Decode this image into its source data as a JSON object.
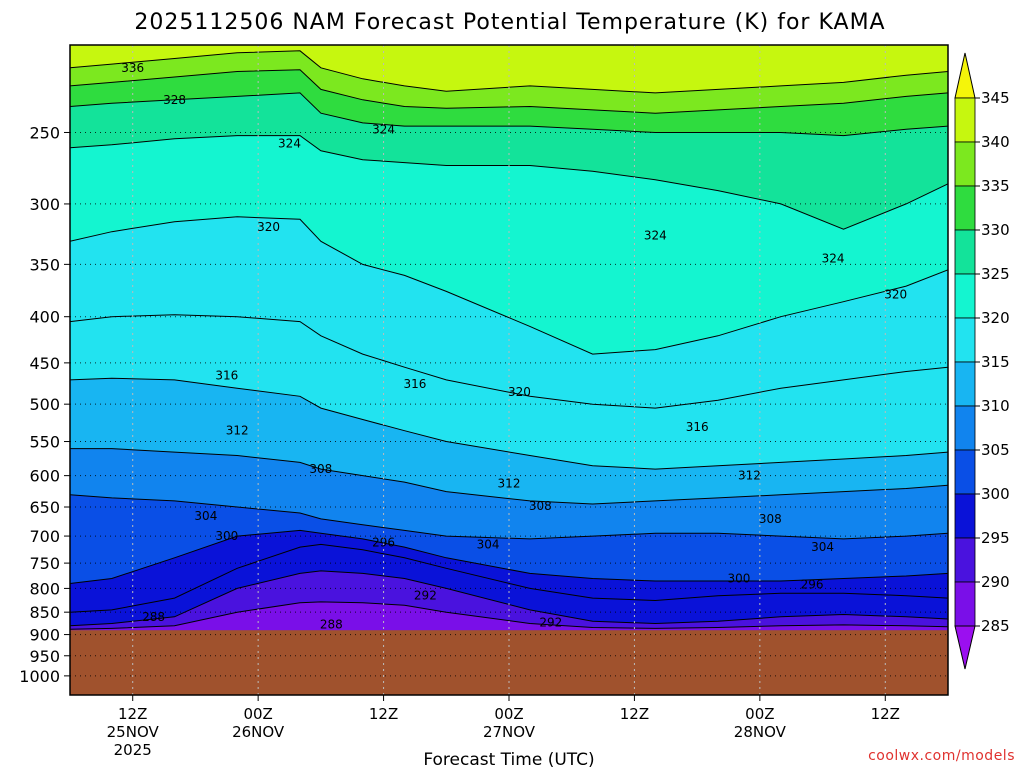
{
  "title": "2025112506 NAM Forecast Potential Temperature (K) for KAMA",
  "credit": "coolwx.com/models",
  "chart_data": {
    "type": "heatmap",
    "title": "2025112506 NAM Forecast Potential Temperature (K) for KAMA",
    "xlabel": "Forecast Time (UTC)",
    "ylabel": "",
    "y_scale": "log",
    "y_reversed": true,
    "ylim": [
      1050,
      200
    ],
    "xlim": [
      6,
      90
    ],
    "y_ticks": [
      250,
      300,
      350,
      400,
      450,
      500,
      550,
      600,
      650,
      700,
      750,
      800,
      850,
      900,
      950,
      1000
    ],
    "x_ticks": [
      {
        "hour": 12,
        "label": "12Z",
        "sub": "25NOV",
        "sub2": "2025"
      },
      {
        "hour": 24,
        "label": "00Z",
        "sub": "26NOV",
        "sub2": ""
      },
      {
        "hour": 36,
        "label": "12Z",
        "sub": "",
        "sub2": ""
      },
      {
        "hour": 48,
        "label": "00Z",
        "sub": "27NOV",
        "sub2": ""
      },
      {
        "hour": 60,
        "label": "12Z",
        "sub": "",
        "sub2": ""
      },
      {
        "hour": 72,
        "label": "00Z",
        "sub": "28NOV",
        "sub2": ""
      },
      {
        "hour": 84,
        "label": "12Z",
        "sub": "",
        "sub2": ""
      }
    ],
    "grid": true,
    "ground_pressure": 890,
    "ground_color": "#a0522d",
    "colorbar": {
      "ticks": [
        345,
        340,
        335,
        330,
        325,
        320,
        315,
        310,
        305,
        300,
        295,
        290,
        285
      ],
      "bands": [
        {
          "min": 340,
          "max": 345,
          "color": "#c6f70f"
        },
        {
          "min": 335,
          "max": 340,
          "color": "#7ce81f"
        },
        {
          "min": 330,
          "max": 335,
          "color": "#2fdc3f"
        },
        {
          "min": 325,
          "max": 330,
          "color": "#13e39a"
        },
        {
          "min": 320,
          "max": 325,
          "color": "#14f5d0"
        },
        {
          "min": 315,
          "max": 320,
          "color": "#22e3f0"
        },
        {
          "min": 310,
          "max": 315,
          "color": "#18b5f2"
        },
        {
          "min": 305,
          "max": 310,
          "color": "#1184ee"
        },
        {
          "min": 300,
          "max": 305,
          "color": "#0a4fe6"
        },
        {
          "min": 295,
          "max": 300,
          "color": "#0a12d8"
        },
        {
          "min": 290,
          "max": 295,
          "color": "#4a12de"
        },
        {
          "min": 285,
          "max": 290,
          "color": "#7a0fe8"
        }
      ],
      "top_arrow_color": "#f5f50a",
      "bottom_arrow_color": "#9b0ff0"
    },
    "series": [
      {
        "value": 336,
        "x": [
          6,
          10,
          16,
          22,
          28,
          30,
          34,
          38,
          42,
          50,
          56,
          62,
          68,
          74,
          80,
          86,
          90
        ],
        "pressure": [
          212,
          210,
          207,
          204,
          203,
          212,
          218,
          222,
          225,
          222,
          224,
          226,
          224,
          222,
          220,
          216,
          214
        ]
      },
      {
        "value": 332,
        "x": [
          6,
          10,
          16,
          22,
          28,
          30,
          34,
          38,
          42,
          50,
          56,
          62,
          68,
          74,
          80,
          86,
          90
        ],
        "pressure": [
          222,
          220,
          217,
          214,
          213,
          224,
          230,
          234,
          235,
          234,
          236,
          238,
          236,
          234,
          232,
          228,
          226
        ]
      },
      {
        "value": 328,
        "x": [
          6,
          10,
          16,
          22,
          28,
          30,
          34,
          38,
          42,
          50,
          56,
          62,
          68,
          74,
          80,
          86,
          90
        ],
        "pressure": [
          234,
          232,
          230,
          228,
          226,
          238,
          244,
          246,
          246,
          246,
          248,
          250,
          250,
          250,
          252,
          248,
          246
        ]
      },
      {
        "value": 324,
        "x": [
          6,
          10,
          16,
          22,
          28,
          30,
          34,
          38,
          42,
          50,
          56,
          62,
          68,
          74,
          80,
          86,
          90
        ],
        "pressure": [
          260,
          258,
          254,
          252,
          252,
          262,
          268,
          270,
          272,
          272,
          276,
          282,
          290,
          300,
          320,
          300,
          285
        ]
      },
      {
        "value": 320,
        "x": [
          6,
          10,
          16,
          22,
          28,
          30,
          34,
          38,
          42,
          50,
          56,
          62,
          68,
          74,
          80,
          86,
          90
        ],
        "pressure": [
          330,
          322,
          314,
          310,
          312,
          330,
          350,
          360,
          375,
          410,
          440,
          435,
          420,
          400,
          385,
          370,
          355
        ]
      },
      {
        "value": 316,
        "x": [
          6,
          10,
          16,
          22,
          28,
          30,
          34,
          38,
          42,
          50,
          56,
          62,
          68,
          74,
          80,
          86,
          90
        ],
        "pressure": [
          405,
          400,
          398,
          400,
          405,
          420,
          440,
          455,
          470,
          490,
          500,
          505,
          495,
          480,
          470,
          460,
          455
        ]
      },
      {
        "value": 312,
        "x": [
          6,
          10,
          16,
          22,
          28,
          30,
          34,
          38,
          42,
          50,
          56,
          62,
          68,
          74,
          80,
          86,
          90
        ],
        "pressure": [
          470,
          468,
          470,
          480,
          490,
          505,
          520,
          535,
          550,
          570,
          585,
          590,
          585,
          580,
          575,
          570,
          565
        ]
      },
      {
        "value": 308,
        "x": [
          6,
          10,
          16,
          22,
          28,
          30,
          34,
          38,
          42,
          50,
          56,
          62,
          68,
          74,
          80,
          86,
          90
        ],
        "pressure": [
          560,
          560,
          565,
          570,
          580,
          590,
          600,
          610,
          625,
          640,
          645,
          640,
          635,
          630,
          625,
          620,
          615
        ]
      },
      {
        "value": 304,
        "x": [
          6,
          10,
          16,
          22,
          28,
          30,
          34,
          38,
          42,
          50,
          56,
          62,
          68,
          74,
          80,
          86,
          90
        ],
        "pressure": [
          630,
          635,
          640,
          650,
          660,
          670,
          680,
          690,
          700,
          705,
          700,
          695,
          695,
          700,
          705,
          700,
          695
        ]
      },
      {
        "value": 300,
        "x": [
          6,
          10,
          16,
          22,
          28,
          30,
          34,
          38,
          42,
          50,
          56,
          62,
          68,
          74,
          80,
          86,
          90
        ],
        "pressure": [
          790,
          780,
          740,
          700,
          690,
          695,
          705,
          720,
          740,
          770,
          780,
          785,
          785,
          785,
          780,
          775,
          770
        ]
      },
      {
        "value": 296,
        "x": [
          6,
          10,
          16,
          22,
          28,
          30,
          34,
          38,
          42,
          50,
          56,
          62,
          68,
          74,
          80,
          86,
          90
        ],
        "pressure": [
          850,
          845,
          820,
          760,
          720,
          715,
          725,
          740,
          760,
          800,
          820,
          825,
          815,
          810,
          810,
          815,
          820
        ]
      },
      {
        "value": 292,
        "x": [
          6,
          10,
          16,
          22,
          28,
          30,
          34,
          38,
          42,
          50,
          56,
          62,
          68,
          74,
          80,
          86,
          90
        ],
        "pressure": [
          880,
          875,
          860,
          800,
          770,
          765,
          770,
          780,
          800,
          845,
          870,
          875,
          870,
          860,
          855,
          860,
          865
        ]
      },
      {
        "value": 288,
        "x": [
          6,
          10,
          16,
          22,
          28,
          30,
          34,
          38,
          42,
          50,
          56,
          62,
          68,
          74,
          80,
          86,
          90
        ],
        "pressure": [
          888,
          886,
          880,
          850,
          830,
          828,
          830,
          835,
          850,
          875,
          884,
          886,
          884,
          880,
          878,
          880,
          882
        ]
      }
    ],
    "contour_labels": [
      {
        "text": "336",
        "hour": 12,
        "pressure": 212
      },
      {
        "text": "328",
        "hour": 16,
        "pressure": 230
      },
      {
        "text": "324",
        "hour": 27,
        "pressure": 257
      },
      {
        "text": "324",
        "hour": 36,
        "pressure": 248
      },
      {
        "text": "320",
        "hour": 25,
        "pressure": 318
      },
      {
        "text": "324",
        "hour": 62,
        "pressure": 325
      },
      {
        "text": "324",
        "hour": 79,
        "pressure": 345
      },
      {
        "text": "320",
        "hour": 85,
        "pressure": 378
      },
      {
        "text": "316",
        "hour": 21,
        "pressure": 465
      },
      {
        "text": "316",
        "hour": 39,
        "pressure": 475
      },
      {
        "text": "320",
        "hour": 49,
        "pressure": 485
      },
      {
        "text": "312",
        "hour": 22,
        "pressure": 535
      },
      {
        "text": "316",
        "hour": 66,
        "pressure": 530
      },
      {
        "text": "308",
        "hour": 30,
        "pressure": 590
      },
      {
        "text": "312",
        "hour": 48,
        "pressure": 612
      },
      {
        "text": "312",
        "hour": 71,
        "pressure": 600
      },
      {
        "text": "308",
        "hour": 51,
        "pressure": 648
      },
      {
        "text": "304",
        "hour": 19,
        "pressure": 665
      },
      {
        "text": "308",
        "hour": 73,
        "pressure": 670
      },
      {
        "text": "300",
        "hour": 21,
        "pressure": 700
      },
      {
        "text": "296",
        "hour": 36,
        "pressure": 712
      },
      {
        "text": "304",
        "hour": 46,
        "pressure": 715
      },
      {
        "text": "304",
        "hour": 78,
        "pressure": 720
      },
      {
        "text": "300",
        "hour": 70,
        "pressure": 780
      },
      {
        "text": "296",
        "hour": 77,
        "pressure": 792
      },
      {
        "text": "292",
        "hour": 40,
        "pressure": 815
      },
      {
        "text": "288",
        "hour": 14,
        "pressure": 860
      },
      {
        "text": "288",
        "hour": 31,
        "pressure": 877
      },
      {
        "text": "292",
        "hour": 52,
        "pressure": 873
      }
    ]
  }
}
